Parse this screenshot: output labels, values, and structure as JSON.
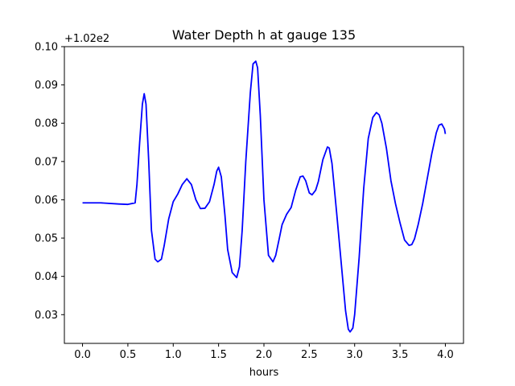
{
  "chart_data": {
    "type": "line",
    "title": "Water Depth h at gauge 135",
    "xlabel": "hours",
    "ylabel": "",
    "offset_label": "+1.02e2",
    "xlim": [
      -0.2,
      4.2
    ],
    "ylim": [
      0.0225,
      0.1
    ],
    "xticks": [
      0.0,
      0.5,
      1.0,
      1.5,
      2.0,
      2.5,
      3.0,
      3.5,
      4.0
    ],
    "xtick_labels": [
      "0.0",
      "0.5",
      "1.0",
      "1.5",
      "2.0",
      "2.5",
      "3.0",
      "3.5",
      "4.0"
    ],
    "yticks": [
      0.03,
      0.04,
      0.05,
      0.06,
      0.07,
      0.08,
      0.09,
      0.1
    ],
    "ytick_labels": [
      "0.03",
      "0.04",
      "0.05",
      "0.06",
      "0.07",
      "0.08",
      "0.09",
      "0.10"
    ],
    "grid": false,
    "series": [
      {
        "color": "#0000ff",
        "x": [
          0.0,
          0.2,
          0.4,
          0.5,
          0.58,
          0.6,
          0.63,
          0.66,
          0.68,
          0.7,
          0.73,
          0.76,
          0.8,
          0.83,
          0.87,
          0.9,
          0.95,
          1.0,
          1.05,
          1.1,
          1.15,
          1.2,
          1.25,
          1.3,
          1.35,
          1.4,
          1.45,
          1.48,
          1.5,
          1.53,
          1.57,
          1.6,
          1.65,
          1.7,
          1.73,
          1.76,
          1.8,
          1.85,
          1.88,
          1.91,
          1.93,
          1.96,
          2.0,
          2.05,
          2.1,
          2.13,
          2.17,
          2.2,
          2.25,
          2.3,
          2.35,
          2.4,
          2.43,
          2.46,
          2.5,
          2.53,
          2.57,
          2.6,
          2.65,
          2.7,
          2.72,
          2.75,
          2.8,
          2.85,
          2.9,
          2.93,
          2.95,
          2.98,
          3.0,
          3.05,
          3.1,
          3.15,
          3.2,
          3.24,
          3.27,
          3.3,
          3.35,
          3.4,
          3.45,
          3.5,
          3.55,
          3.6,
          3.63,
          3.66,
          3.7,
          3.75,
          3.8,
          3.85,
          3.9,
          3.93,
          3.96,
          3.99,
          4.0
        ],
        "y": [
          0.0592,
          0.0592,
          0.0589,
          0.0588,
          0.0592,
          0.064,
          0.075,
          0.085,
          0.0877,
          0.085,
          0.07,
          0.052,
          0.0445,
          0.0438,
          0.0445,
          0.048,
          0.055,
          0.0595,
          0.0615,
          0.064,
          0.0655,
          0.064,
          0.06,
          0.0577,
          0.0578,
          0.0595,
          0.064,
          0.0675,
          0.0685,
          0.066,
          0.056,
          0.047,
          0.041,
          0.0397,
          0.0425,
          0.052,
          0.07,
          0.088,
          0.0955,
          0.0962,
          0.0945,
          0.082,
          0.06,
          0.0455,
          0.0438,
          0.0455,
          0.05,
          0.0535,
          0.0562,
          0.058,
          0.0625,
          0.066,
          0.0662,
          0.065,
          0.0618,
          0.0613,
          0.0625,
          0.0648,
          0.0705,
          0.0738,
          0.0735,
          0.0695,
          0.057,
          0.044,
          0.031,
          0.0262,
          0.0255,
          0.0265,
          0.03,
          0.045,
          0.063,
          0.076,
          0.0815,
          0.0828,
          0.0822,
          0.08,
          0.0735,
          0.065,
          0.059,
          0.054,
          0.0495,
          0.0481,
          0.0483,
          0.0498,
          0.0535,
          0.059,
          0.0655,
          0.072,
          0.0775,
          0.0795,
          0.0798,
          0.0785,
          0.0772
        ]
      }
    ]
  }
}
